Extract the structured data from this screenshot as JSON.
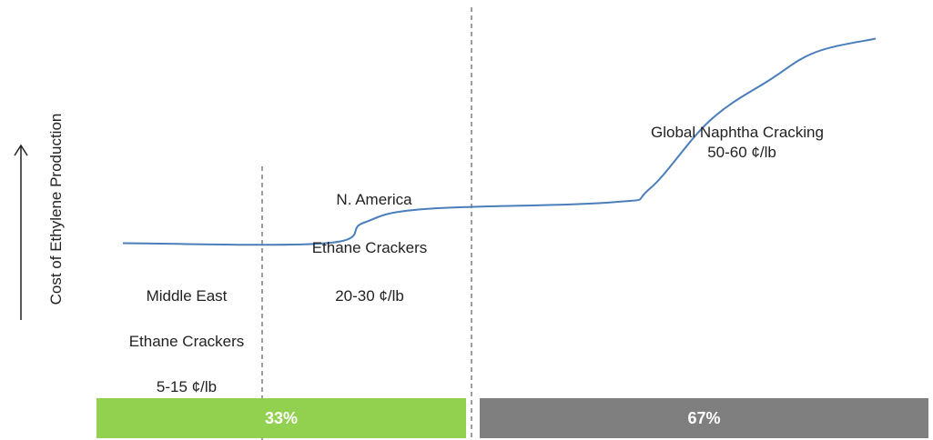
{
  "chart_data": {
    "type": "line",
    "ylabel": "Cost of Ethylene Production",
    "ylabel_arrow": "up-arrow",
    "curve": {
      "color": "#4a7ebb",
      "points": [
        [
          0,
          5
        ],
        [
          27,
          5
        ],
        [
          32,
          8
        ],
        [
          40,
          10
        ],
        [
          65,
          11
        ],
        [
          70,
          13
        ],
        [
          78,
          23
        ],
        [
          86,
          29
        ],
        [
          92,
          33
        ],
        [
          100,
          35
        ]
      ]
    },
    "dividers_x": [
      32,
      68
    ],
    "regions": [
      {
        "lines": [
          "Middle East",
          "Ethane Crackers",
          "5-15 ¢/lb"
        ]
      },
      {
        "lines": [
          "N. America",
          "Ethane Crackers",
          "20-30 ¢/lb"
        ]
      },
      {
        "lines": [
          "Global Naphtha Cracking",
          "50-60 ¢/lb"
        ]
      }
    ],
    "share_bar": [
      {
        "label": "33%",
        "color": "#92d050"
      },
      {
        "label": "67%",
        "color": "#7f7f7f"
      }
    ]
  }
}
